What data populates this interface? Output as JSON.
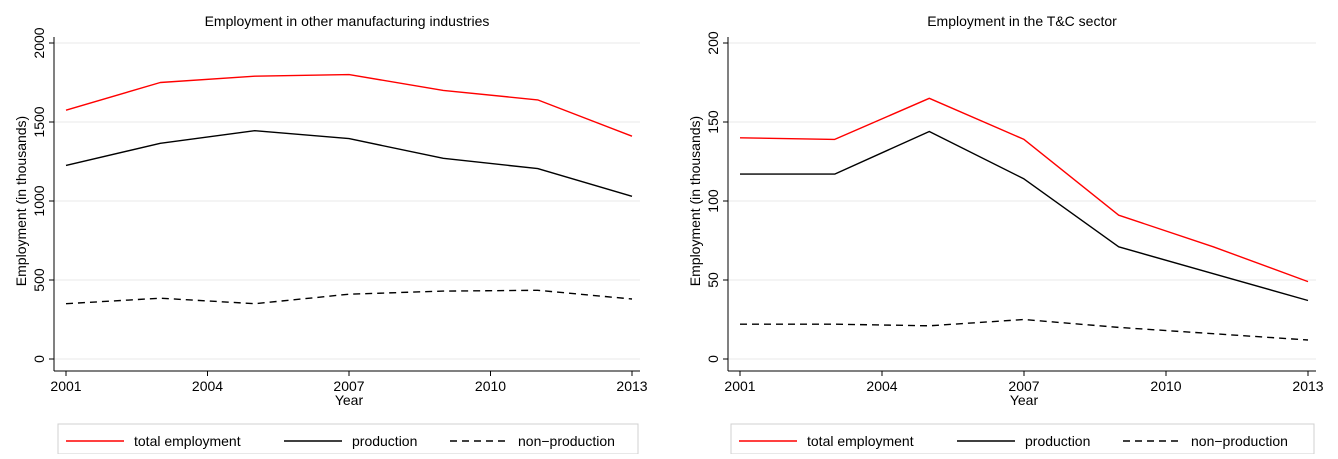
{
  "chart_data": [
    {
      "type": "line",
      "title": "Employment in other manufacturing industries",
      "xlabel": "Year",
      "ylabel": "Employment (in thousands)",
      "xlim": [
        2001,
        2013
      ],
      "ylim": [
        0,
        2000
      ],
      "x_ticks": [
        "2001",
        "2004",
        "2007",
        "2010",
        "2013"
      ],
      "y_ticks": [
        "0",
        "500",
        "1000",
        "1500",
        "2000"
      ],
      "grid": true,
      "legend_position": "bottom",
      "x": [
        2001,
        2003,
        2005,
        2007,
        2009,
        2011,
        2013
      ],
      "series": [
        {
          "name": "total employment",
          "color": "#ff0000",
          "style": "solid",
          "values": [
            1575,
            1750,
            1790,
            1800,
            1700,
            1640,
            1410
          ]
        },
        {
          "name": "production",
          "color": "#000000",
          "style": "solid",
          "values": [
            1225,
            1365,
            1445,
            1395,
            1270,
            1205,
            1030
          ]
        },
        {
          "name": "non−production",
          "color": "#000000",
          "style": "dashed",
          "values": [
            350,
            385,
            350,
            410,
            430,
            435,
            380
          ]
        }
      ]
    },
    {
      "type": "line",
      "title": "Employment in the T&C sector",
      "xlabel": "Year",
      "ylabel": "Employment (in thousands)",
      "xlim": [
        2001,
        2013
      ],
      "ylim": [
        0,
        200
      ],
      "x_ticks": [
        "2001",
        "2004",
        "2007",
        "2010",
        "2013"
      ],
      "y_ticks": [
        "0",
        "50",
        "100",
        "150",
        "200"
      ],
      "grid": true,
      "legend_position": "bottom",
      "x": [
        2001,
        2003,
        2005,
        2007,
        2009,
        2011,
        2013
      ],
      "series": [
        {
          "name": "total employment",
          "color": "#ff0000",
          "style": "solid",
          "values": [
            140,
            139,
            165,
            139,
            91,
            71,
            49
          ]
        },
        {
          "name": "production",
          "color": "#000000",
          "style": "solid",
          "values": [
            117,
            117,
            144,
            114,
            71,
            54,
            37
          ]
        },
        {
          "name": "non−production",
          "color": "#000000",
          "style": "dashed",
          "values": [
            22,
            22,
            21,
            25,
            20,
            16,
            12
          ]
        }
      ]
    }
  ]
}
